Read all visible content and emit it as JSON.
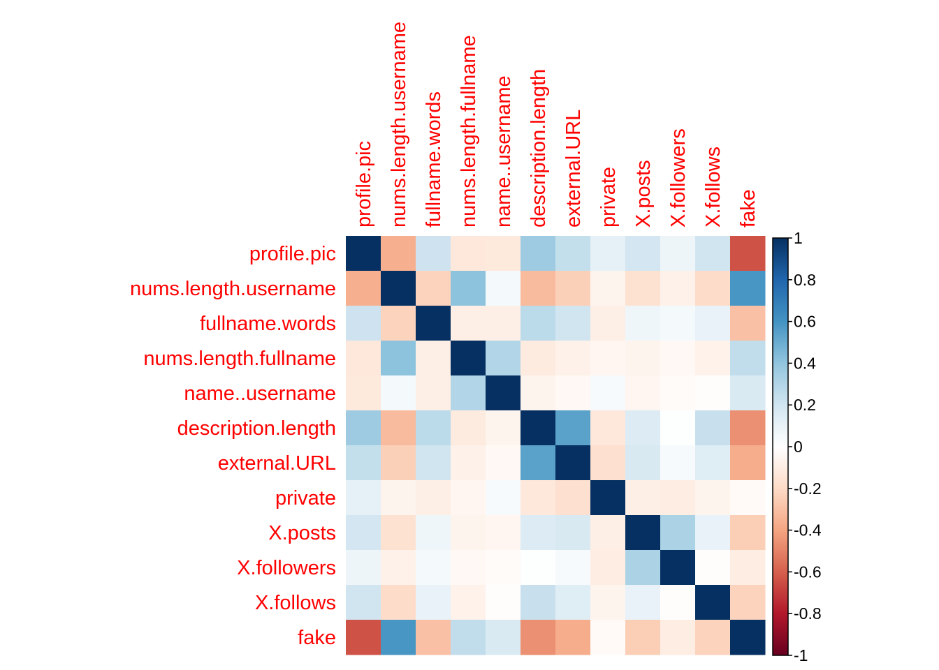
{
  "chart_data": {
    "type": "heatmap",
    "title": "",
    "variables": [
      "profile.pic",
      "nums.length.username",
      "fullname.words",
      "nums.length.fullname",
      "name..username",
      "description.length",
      "external.URL",
      "private",
      "X.posts",
      "X.followers",
      "X.follows",
      "fake"
    ],
    "matrix": [
      [
        1.0,
        -0.36,
        0.21,
        -0.13,
        -0.12,
        0.36,
        0.24,
        0.11,
        0.19,
        0.08,
        0.2,
        -0.64
      ],
      [
        -0.36,
        1.0,
        -0.23,
        0.41,
        0.05,
        -0.32,
        -0.24,
        -0.06,
        -0.16,
        -0.08,
        -0.19,
        0.59
      ],
      [
        0.21,
        -0.23,
        1.0,
        -0.09,
        -0.09,
        0.27,
        0.2,
        -0.09,
        0.07,
        0.05,
        0.1,
        -0.3
      ],
      [
        -0.13,
        0.41,
        -0.09,
        1.0,
        0.3,
        -0.11,
        -0.08,
        -0.05,
        -0.06,
        -0.04,
        -0.07,
        0.25
      ],
      [
        -0.12,
        0.05,
        -0.09,
        0.3,
        1.0,
        -0.06,
        -0.04,
        0.04,
        -0.05,
        -0.02,
        -0.01,
        0.16
      ],
      [
        0.36,
        -0.32,
        0.27,
        -0.11,
        -0.06,
        1.0,
        0.54,
        -0.13,
        0.15,
        0.01,
        0.23,
        -0.46
      ],
      [
        0.24,
        -0.24,
        0.2,
        -0.08,
        -0.04,
        0.54,
        1.0,
        -0.17,
        0.17,
        0.04,
        0.14,
        -0.37
      ],
      [
        0.11,
        -0.06,
        -0.09,
        -0.05,
        0.04,
        -0.13,
        -0.17,
        1.0,
        -0.09,
        -0.1,
        -0.06,
        -0.03
      ],
      [
        0.19,
        -0.16,
        0.07,
        -0.06,
        -0.05,
        0.15,
        0.17,
        -0.09,
        1.0,
        0.32,
        0.1,
        -0.25
      ],
      [
        0.08,
        -0.08,
        0.05,
        -0.04,
        -0.02,
        0.01,
        0.04,
        -0.1,
        0.32,
        1.0,
        -0.01,
        -0.1
      ],
      [
        0.2,
        -0.19,
        0.1,
        -0.07,
        -0.01,
        0.23,
        0.14,
        -0.06,
        0.1,
        -0.01,
        1.0,
        -0.23
      ],
      [
        -0.64,
        0.59,
        -0.3,
        0.25,
        0.16,
        -0.46,
        -0.37,
        -0.03,
        -0.25,
        -0.1,
        -0.23,
        1.0
      ]
    ],
    "color_scale": {
      "min": -1,
      "max": 1,
      "ticks": [
        "1",
        "0.8",
        "0.6",
        "0.4",
        "0.2",
        "0",
        "-0.2",
        "-0.4",
        "-0.6",
        "-0.8",
        "-1"
      ],
      "stops": [
        {
          "value": -1.0,
          "color": "#67001F"
        },
        {
          "value": -0.8,
          "color": "#B2182B"
        },
        {
          "value": -0.6,
          "color": "#D6604D"
        },
        {
          "value": -0.4,
          "color": "#F4A582"
        },
        {
          "value": -0.2,
          "color": "#FDDBC7"
        },
        {
          "value": 0.0,
          "color": "#FFFFFF"
        },
        {
          "value": 0.2,
          "color": "#D1E5F0"
        },
        {
          "value": 0.4,
          "color": "#92C5DE"
        },
        {
          "value": 0.6,
          "color": "#4393C3"
        },
        {
          "value": 0.8,
          "color": "#2166AC"
        },
        {
          "value": 1.0,
          "color": "#053061"
        }
      ]
    },
    "label_color": "#FF0000",
    "legend_position": "right",
    "grid": false
  }
}
